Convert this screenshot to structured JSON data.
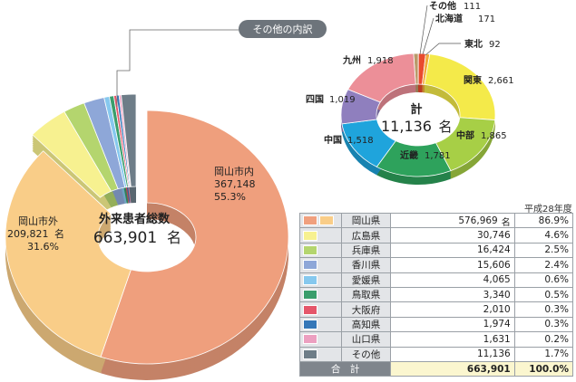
{
  "chart_data": [
    {
      "type": "pie",
      "title": "外来患者総数",
      "total": "663,901",
      "total_unit": "名",
      "slices": [
        {
          "name": "岡山市内",
          "value": 367148,
          "value_label": "367,148",
          "pct": "55.3%",
          "color": "#ef9f7d"
        },
        {
          "name": "岡山市外",
          "value": 209821,
          "value_label": "209,821",
          "unit": "名",
          "pct": "31.6%",
          "color": "#f9cd88"
        },
        {
          "name": "その他の内訳",
          "value": 86932,
          "color": "#b8c0c8"
        }
      ],
      "breakdown": [
        {
          "name": "広島県",
          "value": 30746,
          "color": "#f7f190"
        },
        {
          "name": "兵庫県",
          "value": 16424,
          "color": "#b4d56e"
        },
        {
          "name": "香川県",
          "value": 15606,
          "color": "#8ea7d8"
        },
        {
          "name": "愛媛県",
          "value": 4065,
          "color": "#86c8ee"
        },
        {
          "name": "鳥取県",
          "value": 3340,
          "color": "#3a9e6c"
        },
        {
          "name": "大阪府",
          "value": 2010,
          "color": "#e5566a"
        },
        {
          "name": "高知県",
          "value": 1974,
          "color": "#3577b8"
        },
        {
          "name": "山口県",
          "value": 1631,
          "color": "#ec9fc0"
        },
        {
          "name": "その他",
          "value": 11136,
          "color": "#6e7d88"
        }
      ],
      "callout": "その他の内訳"
    },
    {
      "type": "pie",
      "title": "計",
      "total": "11,136",
      "total_unit": "名",
      "slices": [
        {
          "name": "その他",
          "value": 111,
          "value_label": "111",
          "color": "#b99a6a"
        },
        {
          "name": "北海道",
          "value": 171,
          "value_label": "171",
          "color": "#e94b2e"
        },
        {
          "name": "東北",
          "value": 92,
          "value_label": "92",
          "color": "#f2a93a"
        },
        {
          "name": "関東",
          "value": 2661,
          "value_label": "2,661",
          "color": "#f4ea4a"
        },
        {
          "name": "中部",
          "value": 1865,
          "value_label": "1,865",
          "color": "#a7cf46"
        },
        {
          "name": "近畿",
          "value": 1781,
          "value_label": "1,781",
          "color": "#2ea25c"
        },
        {
          "name": "中国",
          "value": 1518,
          "value_label": "1,518",
          "color": "#1fa4dc"
        },
        {
          "name": "四国",
          "value": 1019,
          "value_label": "1,019",
          "color": "#8f7fbe"
        },
        {
          "name": "九州",
          "value": 1918,
          "value_label": "1,918",
          "color": "#ec8f98"
        }
      ]
    },
    {
      "type": "table",
      "year": "平成28年度",
      "rows": [
        {
          "name": "岡山県",
          "value": "576,969",
          "unit": "名",
          "pct": "86.9%",
          "colors": [
            "#f0a07e",
            "#f9cd88"
          ]
        },
        {
          "name": "広島県",
          "value": "30,746",
          "pct": "4.6%",
          "colors": [
            "#f7f190"
          ]
        },
        {
          "name": "兵庫県",
          "value": "16,424",
          "pct": "2.5%",
          "colors": [
            "#b4d56e"
          ]
        },
        {
          "name": "香川県",
          "value": "15,606",
          "pct": "2.4%",
          "colors": [
            "#8ea7d8"
          ]
        },
        {
          "name": "愛媛県",
          "value": "4,065",
          "pct": "0.6%",
          "colors": [
            "#86c8ee"
          ]
        },
        {
          "name": "鳥取県",
          "value": "3,340",
          "pct": "0.5%",
          "colors": [
            "#3a9e6c"
          ]
        },
        {
          "name": "大阪府",
          "value": "2,010",
          "pct": "0.3%",
          "colors": [
            "#e5566a"
          ]
        },
        {
          "name": "高知県",
          "value": "1,974",
          "pct": "0.3%",
          "colors": [
            "#3577b8"
          ]
        },
        {
          "name": "山口県",
          "value": "1,631",
          "pct": "0.2%",
          "colors": [
            "#ec9fc0"
          ]
        },
        {
          "name": "その他",
          "value": "11,136",
          "pct": "1.7%",
          "colors": [
            "#6e7d88"
          ]
        }
      ],
      "total": {
        "label": "合　計",
        "value": "663,901",
        "pct": "100.0%"
      }
    }
  ]
}
